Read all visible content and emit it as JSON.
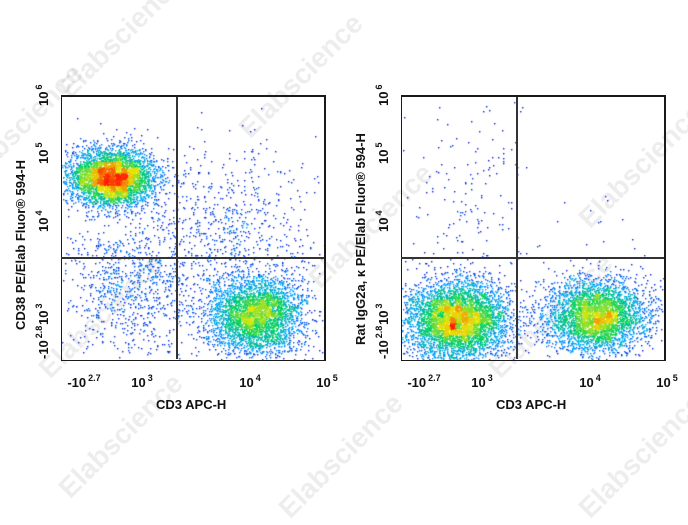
{
  "watermark": "Elabscience",
  "colors": {
    "axis": "#1a1a1a",
    "gate": "#333333",
    "low": "#0000cc",
    "mid": "#00cc66",
    "high": "#ff2200"
  },
  "chart_data": [
    {
      "type": "scatter",
      "title": "",
      "xlabel": "CD3 APC-H",
      "ylabel": "CD38 PE/Elab Fluor® 594-H",
      "x_ticks": [
        {
          "base": "-10",
          "exp": "2.7"
        },
        {
          "base": "10",
          "exp": "3"
        },
        {
          "base": "10",
          "exp": "4"
        },
        {
          "base": "10",
          "exp": "5"
        }
      ],
      "y_ticks": [
        {
          "base": "-10",
          "exp": "2.8"
        },
        {
          "base": "10",
          "exp": "3"
        },
        {
          "base": "10",
          "exp": "4"
        },
        {
          "base": "10",
          "exp": "5"
        },
        {
          "base": "10",
          "exp": "6"
        }
      ],
      "scale": "biexponential",
      "gates": {
        "x": 3.37,
        "y": 3.62
      },
      "populations": [
        {
          "name": "CD3- CD38+",
          "x_center": 2.8,
          "y_center": 4.67,
          "density": "high"
        },
        {
          "name": "CD3+ CD38-",
          "x_center": 4.05,
          "y_center": 2.95,
          "density": "high"
        },
        {
          "name": "CD3+ CD38 mid (scatter)",
          "x_center": 3.9,
          "y_center": 3.8,
          "density": "low"
        },
        {
          "name": "CD3- CD38- (scatter)",
          "x_center": 2.7,
          "y_center": 3.2,
          "density": "low"
        }
      ]
    },
    {
      "type": "scatter",
      "title": "",
      "xlabel": "CD3 APC-H",
      "ylabel": "Rat IgG2a, κ PE/Elab Fluor® 594-H",
      "x_ticks": [
        {
          "base": "-10",
          "exp": "2.7"
        },
        {
          "base": "10",
          "exp": "3"
        },
        {
          "base": "10",
          "exp": "4"
        },
        {
          "base": "10",
          "exp": "5"
        }
      ],
      "y_ticks": [
        {
          "base": "-10",
          "exp": "2.8"
        },
        {
          "base": "10",
          "exp": "3"
        },
        {
          "base": "10",
          "exp": "4"
        },
        {
          "base": "10",
          "exp": "5"
        },
        {
          "base": "10",
          "exp": "6"
        }
      ],
      "scale": "biexponential",
      "gates": {
        "x": 3.37,
        "y": 3.62
      },
      "populations": [
        {
          "name": "CD3- isotype",
          "x_center": 2.75,
          "y_center": 2.9,
          "density": "high"
        },
        {
          "name": "CD3+ isotype",
          "x_center": 4.05,
          "y_center": 2.95,
          "density": "high"
        },
        {
          "name": "sparse upper-left",
          "x_center": 2.8,
          "y_center": 4.5,
          "density": "very low"
        }
      ]
    }
  ],
  "plots": [
    {
      "ylabel": "CD38 PE/Elab Fluor® 594-H",
      "xlabel": "CD3 APC-H",
      "xticks": [
        "-10",
        "10",
        "10",
        "10"
      ],
      "xexps": [
        "2.7",
        "3",
        "4",
        "5"
      ],
      "yticks": [
        "-10",
        "10",
        "10",
        "10",
        "10"
      ],
      "yexps": [
        "2.8",
        "3",
        "4",
        "5",
        "6"
      ]
    },
    {
      "ylabel": "Rat IgG2a, κ PE/Elab Fluor® 594-H",
      "xlabel": "CD3 APC-H",
      "xticks": [
        "-10",
        "10",
        "10",
        "10"
      ],
      "xexps": [
        "2.7",
        "3",
        "4",
        "5"
      ],
      "yticks": [
        "-10",
        "10",
        "10",
        "10",
        "10"
      ],
      "yexps": [
        "2.8",
        "3",
        "4",
        "5",
        "6"
      ]
    }
  ]
}
